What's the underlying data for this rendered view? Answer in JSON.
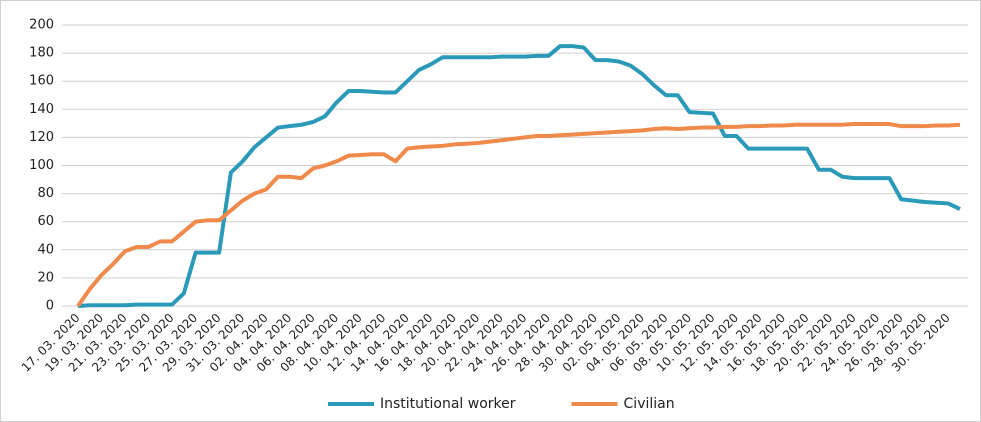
{
  "chart_data": {
    "type": "line",
    "categories": [
      "17. 03. 2020",
      null,
      "19. 03. 2020",
      null,
      "21. 03. 2020",
      null,
      "23. 03. 2020",
      null,
      "25. 03. 2020",
      null,
      "27. 03. 2020",
      null,
      "29. 03. 2020",
      null,
      "31. 03. 2020",
      null,
      "02. 04. 2020",
      null,
      "04. 04. 2020",
      null,
      "06. 04. 2020",
      null,
      "08. 04. 2020",
      null,
      "10. 04. 2020",
      null,
      "12. 04. 2020",
      null,
      "14. 04. 2020",
      null,
      "16. 04. 2020",
      null,
      "18. 04. 2020",
      null,
      "20. 04. 2020",
      null,
      "22. 04. 2020",
      null,
      "24. 04. 2020",
      null,
      "26. 04. 2020",
      null,
      "28. 04. 2020",
      null,
      "30. 04. 2020",
      null,
      "02. 05. 2020",
      null,
      "04. 05. 2020",
      null,
      "06. 05. 2020",
      null,
      "08. 05. 2020",
      null,
      "10. 05. 2020",
      null,
      "12. 05. 2020",
      null,
      "14. 05. 2020",
      null,
      "16. 05. 2020",
      null,
      "18. 05. 2020",
      null,
      "20. 05. 2020",
      null,
      "22. 05. 2020",
      null,
      "24. 05. 2020",
      null,
      "26. 05. 2020",
      null,
      "28. 05. 2020",
      null,
      "30. 05. 2020",
      null
    ],
    "series": [
      {
        "name": "Institutional worker",
        "color": "#2a9ab8",
        "values": [
          0,
          0.5,
          0.5,
          0.5,
          0.5,
          1,
          1,
          1,
          1,
          9,
          38,
          38,
          38,
          95,
          103,
          113,
          120,
          127,
          128,
          129,
          131,
          135,
          145,
          153,
          153,
          152.5,
          152,
          152,
          160,
          168,
          172,
          177,
          177,
          177,
          177,
          177,
          177.5,
          177.5,
          177.5,
          178,
          178,
          185,
          185,
          184,
          175,
          175,
          174,
          171,
          165,
          157,
          150,
          150,
          138,
          137.5,
          137,
          121,
          121,
          112,
          112,
          112,
          112,
          112,
          112,
          97,
          97,
          92,
          91,
          91,
          91,
          91,
          76,
          75,
          74,
          73.5,
          73,
          69
        ]
      },
      {
        "name": "Civilian",
        "color": "#f08a4b",
        "values": [
          0,
          12,
          22,
          30,
          39,
          42,
          42,
          46,
          46,
          53,
          60,
          61,
          61,
          68,
          75,
          80,
          83,
          92,
          92,
          91,
          98,
          100,
          103,
          107,
          107.5,
          108,
          108,
          103,
          112,
          113,
          113.5,
          114,
          115,
          115.5,
          116,
          117,
          118,
          119,
          120,
          121,
          121,
          121.5,
          122,
          122.5,
          123,
          123.5,
          124,
          124.5,
          125,
          126,
          126.5,
          126,
          126.5,
          127,
          127,
          127.5,
          127.5,
          128,
          128,
          128.5,
          128.5,
          129,
          129,
          129,
          129,
          129,
          129.5,
          129.5,
          129.5,
          129.5,
          128,
          128,
          128,
          128.5,
          128.5,
          129
        ]
      }
    ],
    "ylim": [
      0,
      200
    ],
    "yticks": [
      0,
      20,
      40,
      60,
      80,
      100,
      120,
      140,
      160,
      180,
      200
    ],
    "grid": true,
    "legend": "bottom"
  }
}
